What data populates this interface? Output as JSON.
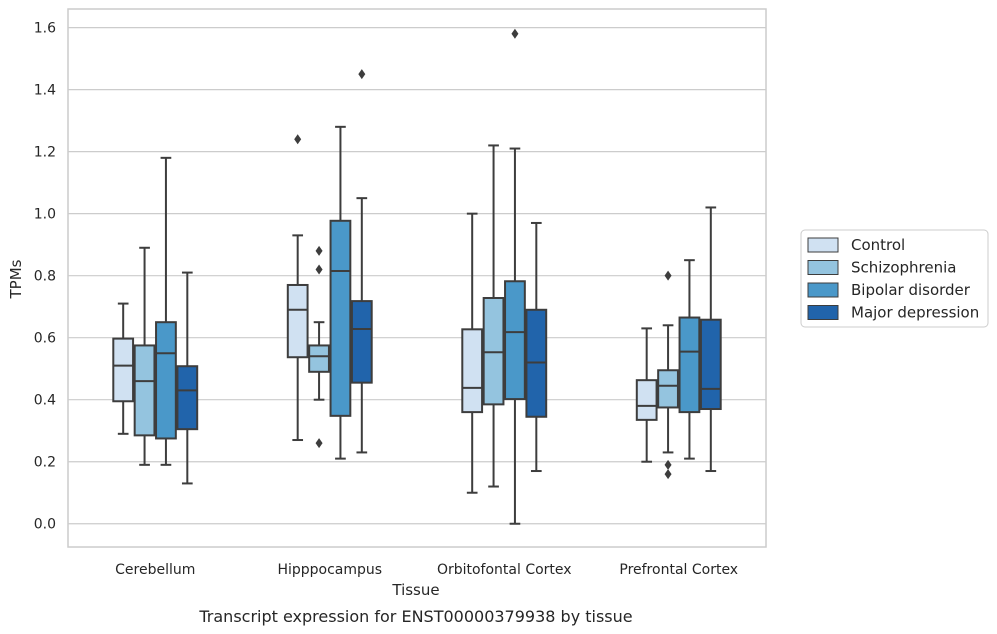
{
  "caption": "Transcript expression for ENST00000379938 by tissue",
  "chart_data": {
    "type": "box",
    "xlabel": "Tissue",
    "ylabel": "TPMs",
    "ylim": [
      -0.075,
      1.66
    ],
    "yticks": [
      0.0,
      0.2,
      0.4,
      0.6,
      0.8,
      1.0,
      1.2,
      1.4,
      1.6
    ],
    "ytick_labels": [
      "0.0",
      "0.2",
      "0.4",
      "0.6",
      "0.8",
      "1.0",
      "1.2",
      "1.4",
      "1.6"
    ],
    "grid": true,
    "legend_position": "right",
    "categories": [
      "Cerebellum",
      "Hipppocampus",
      "Orbitofontal Cortex",
      "Prefrontal Cortex"
    ],
    "series": [
      {
        "name": "Control",
        "color": "#d0e1f2",
        "boxes": [
          {
            "whisker_low": 0.29,
            "q1": 0.395,
            "median": 0.51,
            "q3": 0.597,
            "whisker_high": 0.71,
            "outliers": []
          },
          {
            "whisker_low": 0.27,
            "q1": 0.537,
            "median": 0.69,
            "q3": 0.77,
            "whisker_high": 0.93,
            "outliers": [
              1.24
            ]
          },
          {
            "whisker_low": 0.1,
            "q1": 0.36,
            "median": 0.438,
            "q3": 0.627,
            "whisker_high": 1.0,
            "outliers": []
          },
          {
            "whisker_low": 0.2,
            "q1": 0.335,
            "median": 0.38,
            "q3": 0.463,
            "whisker_high": 0.63,
            "outliers": []
          }
        ]
      },
      {
        "name": "Schizophrenia",
        "color": "#94c4df",
        "boxes": [
          {
            "whisker_low": 0.19,
            "q1": 0.285,
            "median": 0.46,
            "q3": 0.575,
            "whisker_high": 0.89,
            "outliers": []
          },
          {
            "whisker_low": 0.4,
            "q1": 0.49,
            "median": 0.54,
            "q3": 0.575,
            "whisker_high": 0.65,
            "outliers": [
              0.26,
              0.82,
              0.88
            ]
          },
          {
            "whisker_low": 0.12,
            "q1": 0.385,
            "median": 0.553,
            "q3": 0.728,
            "whisker_high": 1.22,
            "outliers": []
          },
          {
            "whisker_low": 0.23,
            "q1": 0.375,
            "median": 0.445,
            "q3": 0.495,
            "whisker_high": 0.64,
            "outliers": [
              0.16,
              0.19,
              0.8
            ]
          }
        ]
      },
      {
        "name": "Bipolar disorder",
        "color": "#4a98c9",
        "boxes": [
          {
            "whisker_low": 0.19,
            "q1": 0.275,
            "median": 0.55,
            "q3": 0.65,
            "whisker_high": 1.18,
            "outliers": []
          },
          {
            "whisker_low": 0.21,
            "q1": 0.348,
            "median": 0.815,
            "q3": 0.977,
            "whisker_high": 1.28,
            "outliers": []
          },
          {
            "whisker_low": 0.0,
            "q1": 0.402,
            "median": 0.618,
            "q3": 0.782,
            "whisker_high": 1.21,
            "outliers": [
              1.58
            ]
          },
          {
            "whisker_low": 0.21,
            "q1": 0.36,
            "median": 0.555,
            "q3": 0.665,
            "whisker_high": 0.85,
            "outliers": []
          }
        ]
      },
      {
        "name": "Major depression",
        "color": "#2164ab",
        "boxes": [
          {
            "whisker_low": 0.13,
            "q1": 0.305,
            "median": 0.43,
            "q3": 0.508,
            "whisker_high": 0.81,
            "outliers": []
          },
          {
            "whisker_low": 0.23,
            "q1": 0.455,
            "median": 0.628,
            "q3": 0.718,
            "whisker_high": 1.05,
            "outliers": [
              1.45
            ]
          },
          {
            "whisker_low": 0.17,
            "q1": 0.345,
            "median": 0.52,
            "q3": 0.69,
            "whisker_high": 0.97,
            "outliers": []
          },
          {
            "whisker_low": 0.17,
            "q1": 0.37,
            "median": 0.435,
            "q3": 0.658,
            "whisker_high": 1.02,
            "outliers": []
          }
        ]
      }
    ]
  }
}
